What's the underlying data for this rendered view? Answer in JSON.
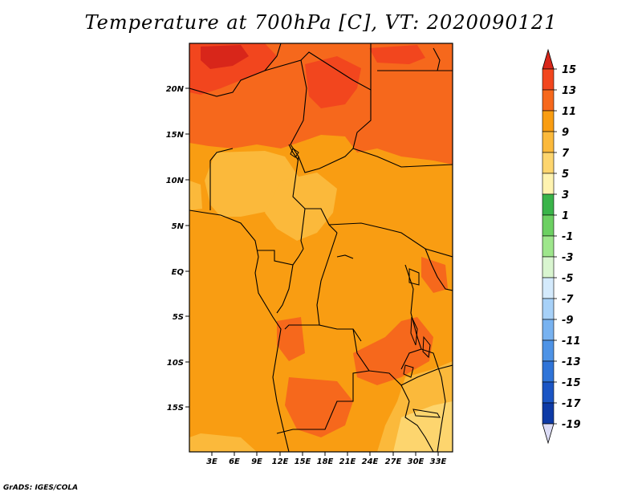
{
  "title": "Temperature at 700hPa [C], VT: 2020090121",
  "credit": "GrADS: IGES/COLA",
  "map": {
    "lat_labels": [
      "20N",
      "15N",
      "10N",
      "5N",
      "EQ",
      "5S",
      "10S",
      "15S"
    ],
    "lon_labels": [
      "3E",
      "6E",
      "9E",
      "12E",
      "15E",
      "18E",
      "21E",
      "24E",
      "27E",
      "30E",
      "33E"
    ]
  },
  "colorbar": {
    "labels": [
      "15",
      "13",
      "11",
      "9",
      "7",
      "5",
      "3",
      "1",
      "-1",
      "-3",
      "-5",
      "-7",
      "-9",
      "-11",
      "-13",
      "-15",
      "-17",
      "-19"
    ],
    "colors": {
      "above_15": "#d8261a",
      "13_15": "#f2461e",
      "11_13": "#f6681c",
      "9_11": "#f99d12",
      "7_9": "#fbb93b",
      "5_7": "#fdd56e",
      "3_5": "#fff3b0",
      "1_3": "#3ab44a",
      "-1_1": "#6cd062",
      "-3_-1": "#9ee68c",
      "-5_-3": "#d9f5d0",
      "-7_-5": "#d4eafc",
      "-9_-7": "#a7d1f8",
      "-11_-9": "#78b2f0",
      "-13_-11": "#4e93e6",
      "-15_-13": "#2f74d8",
      "-17_-15": "#1b55c4",
      "-19_-17": "#0e3aa6",
      "below_-19": "#08237e",
      "underflow": "#dcdcf6"
    }
  }
}
